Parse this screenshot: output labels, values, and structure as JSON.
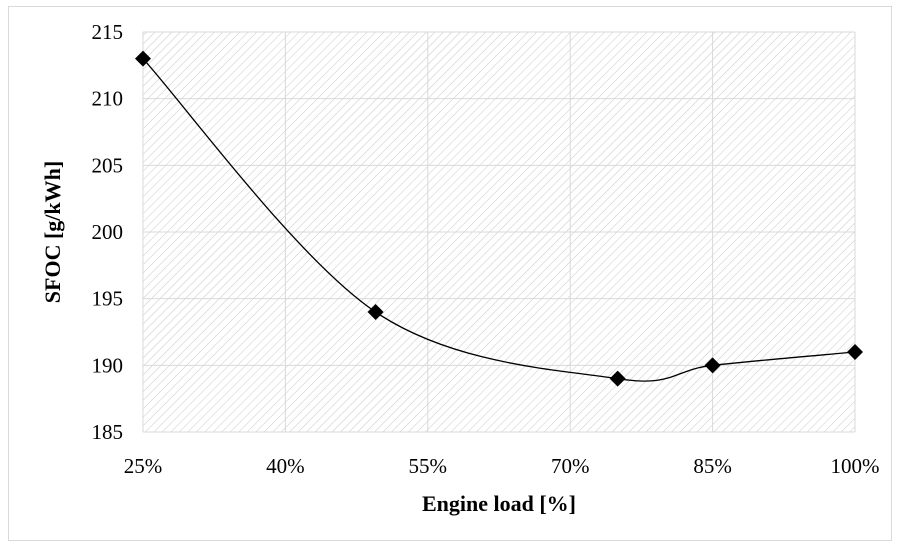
{
  "chart_data": {
    "type": "line",
    "title": "",
    "xlabel": "Engine load [%]",
    "ylabel": "SFOC [g/kWh]",
    "x_ticks": [
      "25%",
      "40%",
      "55%",
      "70%",
      "85%",
      "100%"
    ],
    "y_ticks": [
      "185",
      "190",
      "195",
      "200",
      "205",
      "210",
      "215"
    ],
    "xlim": [
      25,
      100
    ],
    "ylim": [
      185,
      215
    ],
    "grid": true,
    "legend": "none",
    "plot_background": "hatched",
    "series": [
      {
        "x": [
          25,
          49.5,
          75,
          85,
          100
        ],
        "y": [
          213,
          194,
          189,
          190,
          191
        ],
        "marker": "diamond",
        "smooth": true,
        "color": "#000000"
      }
    ]
  }
}
